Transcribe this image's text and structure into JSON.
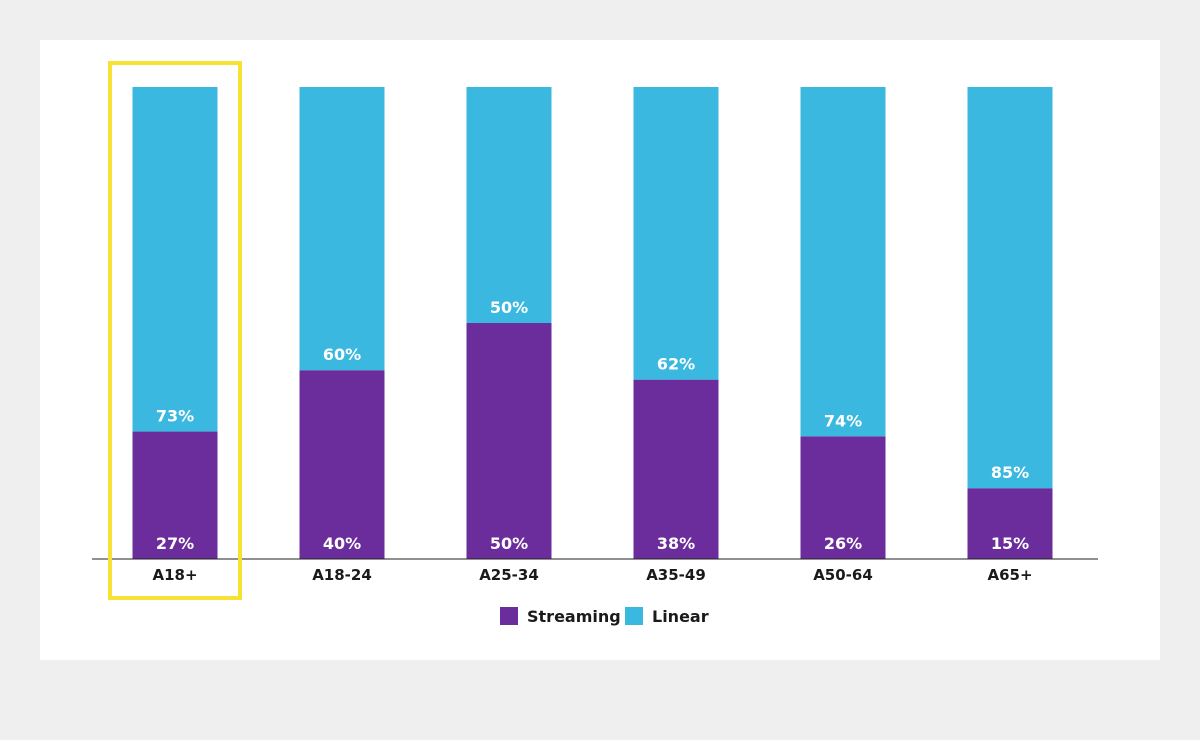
{
  "colors": {
    "streaming": "#6b2d9c",
    "linear": "#3ab8df",
    "highlight": "#f7e233",
    "baseline": "#222222"
  },
  "highlight_category": "A18+",
  "chart_data": {
    "type": "bar",
    "stacked": true,
    "categories": [
      "A18+",
      "A18-24",
      "A25-34",
      "A35-49",
      "A50-64",
      "A65+"
    ],
    "series": [
      {
        "name": "Streaming",
        "values": [
          27,
          40,
          50,
          38,
          26,
          15
        ],
        "labels": [
          "27%",
          "40%",
          "50%",
          "38%",
          "26%",
          "15%"
        ]
      },
      {
        "name": "Linear",
        "values": [
          73,
          60,
          50,
          62,
          74,
          85
        ],
        "labels": [
          "73%",
          "60%",
          "50%",
          "62%",
          "74%",
          "85%"
        ]
      }
    ],
    "ylim": [
      0,
      100
    ],
    "grid": false,
    "legend": "bottom-center"
  }
}
